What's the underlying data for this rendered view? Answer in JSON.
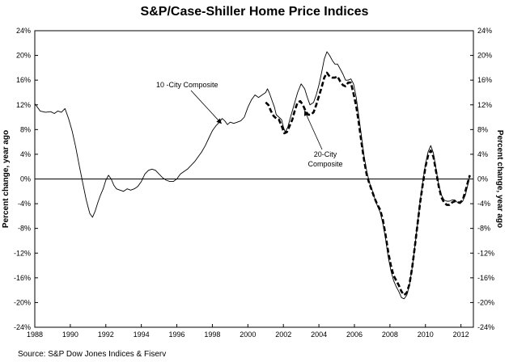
{
  "chart_data": {
    "type": "line",
    "title": "S&P/Case-Shiller Home Price Indices",
    "ylabel_left": "Percent change, year ago",
    "ylabel_right": "Percent change, year ago",
    "xlabel": "",
    "source": "Source: S&P Dow Jones Indices & Fiserv",
    "xlim": [
      1988,
      2012.7
    ],
    "ylim": [
      -24,
      24
    ],
    "y_ticks": [
      -24,
      -20,
      -16,
      -12,
      -8,
      -4,
      0,
      4,
      8,
      12,
      16,
      20,
      24
    ],
    "y_tick_labels": [
      "-24%",
      "-20%",
      "-16%",
      "-12%",
      "-8%",
      "-4%",
      "0%",
      "4%",
      "8%",
      "12%",
      "16%",
      "20%",
      "24%"
    ],
    "x_ticks": [
      1988,
      1990,
      1992,
      1994,
      1996,
      1998,
      2000,
      2002,
      2004,
      2006,
      2008,
      2010,
      2012
    ],
    "x_tick_labels": [
      "1988",
      "1990",
      "1992",
      "1994",
      "1996",
      "1998",
      "2000",
      "2002",
      "2004",
      "2006",
      "2008",
      "2010",
      "2012"
    ],
    "grid": false,
    "zero_line": true,
    "series": [
      {
        "name": "10 -City Composite",
        "style": "solid",
        "color": "#000000",
        "points": [
          [
            1988.0,
            12.2
          ],
          [
            1988.3,
            11.0
          ],
          [
            1988.6,
            10.8
          ],
          [
            1988.9,
            10.9
          ],
          [
            1989.1,
            10.6
          ],
          [
            1989.3,
            11.0
          ],
          [
            1989.5,
            10.8
          ],
          [
            1989.7,
            11.4
          ],
          [
            1989.9,
            9.8
          ],
          [
            1990.1,
            7.8
          ],
          [
            1990.3,
            5.2
          ],
          [
            1990.5,
            2.2
          ],
          [
            1990.7,
            -0.6
          ],
          [
            1990.9,
            -3.4
          ],
          [
            1991.1,
            -5.6
          ],
          [
            1991.25,
            -6.2
          ],
          [
            1991.4,
            -5.2
          ],
          [
            1991.55,
            -3.8
          ],
          [
            1991.7,
            -2.6
          ],
          [
            1991.85,
            -1.6
          ],
          [
            1992.0,
            -0.2
          ],
          [
            1992.15,
            0.6
          ],
          [
            1992.3,
            0.0
          ],
          [
            1992.45,
            -1.0
          ],
          [
            1992.6,
            -1.6
          ],
          [
            1992.8,
            -1.8
          ],
          [
            1993.0,
            -2.0
          ],
          [
            1993.2,
            -1.6
          ],
          [
            1993.4,
            -1.8
          ],
          [
            1993.6,
            -1.6
          ],
          [
            1993.8,
            -1.2
          ],
          [
            1994.0,
            -0.4
          ],
          [
            1994.2,
            0.8
          ],
          [
            1994.4,
            1.4
          ],
          [
            1994.6,
            1.6
          ],
          [
            1994.8,
            1.4
          ],
          [
            1995.0,
            0.8
          ],
          [
            1995.2,
            0.2
          ],
          [
            1995.4,
            -0.2
          ],
          [
            1995.6,
            -0.4
          ],
          [
            1995.8,
            -0.4
          ],
          [
            1996.0,
            0.0
          ],
          [
            1996.2,
            0.8
          ],
          [
            1996.4,
            1.2
          ],
          [
            1996.6,
            1.6
          ],
          [
            1996.8,
            2.2
          ],
          [
            1997.0,
            2.8
          ],
          [
            1997.2,
            3.6
          ],
          [
            1997.4,
            4.4
          ],
          [
            1997.6,
            5.4
          ],
          [
            1997.8,
            6.6
          ],
          [
            1998.0,
            7.8
          ],
          [
            1998.2,
            8.6
          ],
          [
            1998.4,
            9.2
          ],
          [
            1998.55,
            9.8
          ],
          [
            1998.7,
            9.4
          ],
          [
            1998.85,
            8.8
          ],
          [
            1999.0,
            9.2
          ],
          [
            1999.2,
            9.0
          ],
          [
            1999.4,
            9.2
          ],
          [
            1999.6,
            9.4
          ],
          [
            1999.8,
            10.0
          ],
          [
            2000.0,
            11.6
          ],
          [
            2000.2,
            12.8
          ],
          [
            2000.4,
            13.6
          ],
          [
            2000.6,
            13.2
          ],
          [
            2000.8,
            13.6
          ],
          [
            2001.0,
            14.0
          ],
          [
            2001.1,
            14.6
          ],
          [
            2001.2,
            14.0
          ],
          [
            2001.35,
            12.8
          ],
          [
            2001.5,
            11.6
          ],
          [
            2001.6,
            10.4
          ],
          [
            2001.75,
            10.0
          ],
          [
            2001.9,
            9.6
          ],
          [
            2002.0,
            8.4
          ],
          [
            2002.1,
            7.6
          ],
          [
            2002.25,
            8.4
          ],
          [
            2002.4,
            10.0
          ],
          [
            2002.6,
            12.0
          ],
          [
            2002.8,
            14.0
          ],
          [
            2003.0,
            15.4
          ],
          [
            2003.2,
            14.6
          ],
          [
            2003.35,
            13.2
          ],
          [
            2003.5,
            12.0
          ],
          [
            2003.7,
            12.4
          ],
          [
            2003.85,
            13.6
          ],
          [
            2004.0,
            15.2
          ],
          [
            2004.15,
            17.2
          ],
          [
            2004.3,
            19.4
          ],
          [
            2004.45,
            20.6
          ],
          [
            2004.6,
            20.0
          ],
          [
            2004.75,
            19.2
          ],
          [
            2004.9,
            18.6
          ],
          [
            2005.05,
            18.6
          ],
          [
            2005.2,
            17.8
          ],
          [
            2005.35,
            17.0
          ],
          [
            2005.5,
            16.0
          ],
          [
            2005.65,
            16.0
          ],
          [
            2005.8,
            16.2
          ],
          [
            2005.95,
            15.4
          ],
          [
            2006.1,
            13.2
          ],
          [
            2006.25,
            10.0
          ],
          [
            2006.4,
            6.8
          ],
          [
            2006.55,
            3.6
          ],
          [
            2006.7,
            1.2
          ],
          [
            2006.85,
            -0.6
          ],
          [
            2007.0,
            -1.8
          ],
          [
            2007.15,
            -3.2
          ],
          [
            2007.3,
            -4.4
          ],
          [
            2007.45,
            -5.4
          ],
          [
            2007.6,
            -7.2
          ],
          [
            2007.75,
            -9.6
          ],
          [
            2007.9,
            -12.6
          ],
          [
            2008.05,
            -14.8
          ],
          [
            2008.2,
            -16.4
          ],
          [
            2008.35,
            -17.4
          ],
          [
            2008.5,
            -18.2
          ],
          [
            2008.65,
            -19.2
          ],
          [
            2008.8,
            -19.4
          ],
          [
            2008.95,
            -18.8
          ],
          [
            2009.1,
            -17.2
          ],
          [
            2009.25,
            -14.4
          ],
          [
            2009.4,
            -11.0
          ],
          [
            2009.55,
            -7.4
          ],
          [
            2009.7,
            -3.6
          ],
          [
            2009.85,
            -0.4
          ],
          [
            2010.0,
            2.4
          ],
          [
            2010.15,
            4.4
          ],
          [
            2010.3,
            5.4
          ],
          [
            2010.45,
            4.2
          ],
          [
            2010.6,
            1.6
          ],
          [
            2010.75,
            -1.0
          ],
          [
            2010.9,
            -2.6
          ],
          [
            2011.05,
            -3.4
          ],
          [
            2011.2,
            -3.6
          ],
          [
            2011.35,
            -3.6
          ],
          [
            2011.5,
            -3.4
          ],
          [
            2011.65,
            -3.4
          ],
          [
            2011.8,
            -3.8
          ],
          [
            2011.95,
            -4.0
          ],
          [
            2012.1,
            -3.6
          ],
          [
            2012.25,
            -2.6
          ],
          [
            2012.4,
            -0.8
          ],
          [
            2012.5,
            0.6
          ]
        ]
      },
      {
        "name": "20-City Composite",
        "style": "dashed",
        "color": "#000000",
        "points": [
          [
            2001.0,
            12.4
          ],
          [
            2001.15,
            12.0
          ],
          [
            2001.3,
            11.0
          ],
          [
            2001.45,
            10.2
          ],
          [
            2001.6,
            9.8
          ],
          [
            2001.75,
            9.6
          ],
          [
            2001.9,
            8.6
          ],
          [
            2002.05,
            7.4
          ],
          [
            2002.2,
            7.6
          ],
          [
            2002.35,
            8.6
          ],
          [
            2002.5,
            9.6
          ],
          [
            2002.65,
            11.2
          ],
          [
            2002.8,
            12.4
          ],
          [
            2002.95,
            12.6
          ],
          [
            2003.1,
            12.0
          ],
          [
            2003.25,
            11.0
          ],
          [
            2003.4,
            10.4
          ],
          [
            2003.55,
            10.4
          ],
          [
            2003.7,
            10.8
          ],
          [
            2003.85,
            12.0
          ],
          [
            2004.0,
            13.4
          ],
          [
            2004.15,
            14.8
          ],
          [
            2004.3,
            16.4
          ],
          [
            2004.45,
            17.2
          ],
          [
            2004.6,
            16.6
          ],
          [
            2004.75,
            16.4
          ],
          [
            2004.9,
            16.4
          ],
          [
            2005.05,
            16.6
          ],
          [
            2005.2,
            15.8
          ],
          [
            2005.35,
            15.2
          ],
          [
            2005.5,
            15.0
          ],
          [
            2005.65,
            15.6
          ],
          [
            2005.8,
            15.6
          ],
          [
            2005.95,
            13.8
          ],
          [
            2006.1,
            11.8
          ],
          [
            2006.25,
            9.0
          ],
          [
            2006.4,
            5.8
          ],
          [
            2006.55,
            3.0
          ],
          [
            2006.7,
            0.6
          ],
          [
            2006.85,
            -0.8
          ],
          [
            2007.0,
            -2.0
          ],
          [
            2007.15,
            -3.2
          ],
          [
            2007.3,
            -4.2
          ],
          [
            2007.45,
            -5.0
          ],
          [
            2007.6,
            -6.6
          ],
          [
            2007.75,
            -9.0
          ],
          [
            2007.9,
            -11.8
          ],
          [
            2008.05,
            -14.0
          ],
          [
            2008.2,
            -15.6
          ],
          [
            2008.35,
            -16.4
          ],
          [
            2008.5,
            -17.2
          ],
          [
            2008.65,
            -18.2
          ],
          [
            2008.8,
            -18.8
          ],
          [
            2008.95,
            -18.4
          ],
          [
            2009.1,
            -17.0
          ],
          [
            2009.25,
            -14.4
          ],
          [
            2009.4,
            -11.0
          ],
          [
            2009.55,
            -7.4
          ],
          [
            2009.7,
            -3.8
          ],
          [
            2009.85,
            -0.8
          ],
          [
            2010.0,
            2.0
          ],
          [
            2010.15,
            3.8
          ],
          [
            2010.3,
            4.6
          ],
          [
            2010.45,
            3.6
          ],
          [
            2010.6,
            1.2
          ],
          [
            2010.75,
            -1.2
          ],
          [
            2010.9,
            -3.0
          ],
          [
            2011.05,
            -3.8
          ],
          [
            2011.2,
            -4.2
          ],
          [
            2011.35,
            -4.2
          ],
          [
            2011.5,
            -3.8
          ],
          [
            2011.65,
            -3.6
          ],
          [
            2011.8,
            -3.8
          ],
          [
            2011.95,
            -3.8
          ],
          [
            2012.1,
            -3.4
          ],
          [
            2012.25,
            -2.0
          ],
          [
            2012.4,
            -0.4
          ],
          [
            2012.5,
            0.6
          ]
        ]
      }
    ],
    "annotations": [
      {
        "text": "10 -City Composite",
        "arrow_to": [
          1998.5,
          9.0
        ]
      },
      {
        "text_lines": [
          "20-City",
          "Composite"
        ],
        "arrow_to": [
          2003.2,
          11.0
        ]
      }
    ]
  }
}
